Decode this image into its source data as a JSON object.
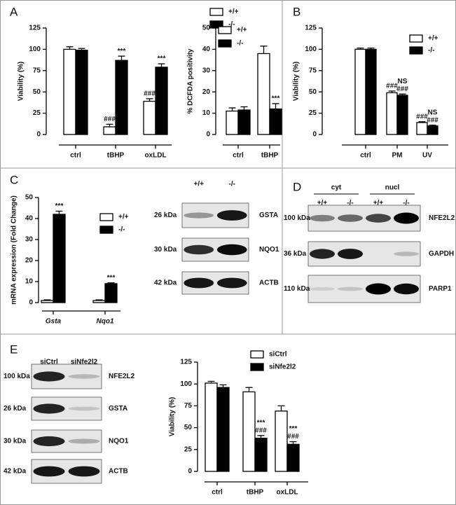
{
  "panel_letters": [
    "A",
    "B",
    "C",
    "D",
    "E"
  ],
  "chart_data": [
    {
      "type": "bar",
      "ylabel": "Viability (%)",
      "categories": [
        "ctrl",
        "tBHP",
        "oxLDL"
      ],
      "series": [
        {
          "name": "+/+",
          "color": "#ffffff",
          "values": [
            100,
            9,
            39
          ],
          "errors": [
            3,
            3,
            3
          ],
          "annotations": [
            null,
            [
              "###"
            ],
            [
              "###"
            ]
          ]
        },
        {
          "name": "-/-",
          "color": "#000000",
          "values": [
            99,
            87,
            79
          ],
          "errors": [
            2,
            5,
            4
          ],
          "annotations": [
            null,
            [
              "***"
            ],
            [
              "***"
            ]
          ]
        }
      ],
      "ylim": [
        0,
        125
      ],
      "yticks": [
        0,
        25,
        50,
        75,
        100,
        125
      ]
    },
    {
      "type": "bar",
      "ylabel": "% DCFDA positivity",
      "categories": [
        "ctrl",
        "tBHP"
      ],
      "series": [
        {
          "name": "+/+",
          "color": "#ffffff",
          "values": [
            11,
            38
          ],
          "errors": [
            1.5,
            3.5
          ]
        },
        {
          "name": "-/-",
          "color": "#000000",
          "values": [
            11.5,
            12
          ],
          "errors": [
            1.5,
            2.5
          ],
          "annotations": [
            null,
            [
              "***"
            ]
          ]
        }
      ],
      "ylim": [
        0,
        50
      ],
      "yticks": [
        0,
        10,
        20,
        30,
        40,
        50
      ]
    },
    {
      "type": "bar",
      "ylabel": "Viability (%)",
      "categories": [
        "ctrl",
        "PM",
        "UV"
      ],
      "series": [
        {
          "name": "+/+",
          "color": "#ffffff",
          "values": [
            100,
            49,
            14
          ],
          "errors": [
            1.5,
            2,
            1
          ],
          "annotations": [
            null,
            [
              "###"
            ],
            [
              "###"
            ]
          ]
        },
        {
          "name": "-/-",
          "color": "#000000",
          "values": [
            100,
            46,
            10
          ],
          "errors": [
            1.5,
            1.5,
            1
          ],
          "annotations": [
            null,
            [
              "NS",
              "###"
            ],
            [
              "NS",
              "###"
            ]
          ]
        }
      ],
      "ylim": [
        0,
        125
      ],
      "yticks": [
        0,
        25,
        50,
        75,
        100,
        125
      ]
    },
    {
      "type": "bar",
      "ylabel": "mRNA expression (Fold Change)",
      "categories": [
        "Gsta",
        "Nqo1"
      ],
      "category_style": "italic",
      "series": [
        {
          "name": "+/+",
          "color": "#ffffff",
          "values": [
            1,
            1
          ],
          "errors": [
            0.3,
            0.3
          ]
        },
        {
          "name": "-/-",
          "color": "#000000",
          "values": [
            42,
            9
          ],
          "errors": [
            1.5,
            0.4
          ],
          "annotations": [
            [
              "***"
            ],
            [
              "***"
            ]
          ]
        }
      ],
      "ylim": [
        0,
        50
      ],
      "yticks": [
        0,
        10,
        20,
        30,
        40,
        50
      ]
    },
    {
      "type": "bar",
      "ylabel": "Viability (%)",
      "categories": [
        "ctrl",
        "tBHP",
        "oxLDL"
      ],
      "series": [
        {
          "name": "siCtrl",
          "color": "#ffffff",
          "values": [
            101,
            91,
            69
          ],
          "errors": [
            2,
            5,
            6
          ]
        },
        {
          "name": "siNfe2l2",
          "color": "#000000",
          "values": [
            96,
            38,
            31
          ],
          "errors": [
            3,
            3,
            3
          ],
          "annotations": [
            null,
            [
              "***",
              "###"
            ],
            [
              "***",
              "###"
            ]
          ]
        }
      ],
      "ylim": [
        0,
        125
      ],
      "yticks": [
        0,
        25,
        50,
        75,
        100,
        125
      ]
    }
  ],
  "blots": [
    {
      "lanes": [
        "+/+",
        "-/-"
      ],
      "rows": [
        {
          "size": "26 kDa",
          "protein": "GSTA"
        },
        {
          "size": "30 kDa",
          "protein": "NQO1"
        },
        {
          "size": "42 kDa",
          "protein": "ACTB"
        }
      ]
    },
    {
      "groups": [
        "cyt",
        "nucl"
      ],
      "lanes": [
        "+/+",
        "-/-",
        "+/+",
        "-/-"
      ],
      "rows": [
        {
          "size": "100 kDa",
          "protein": "NFE2L2"
        },
        {
          "size": "36 kDa",
          "protein": "GAPDH"
        },
        {
          "size": "110 kDa",
          "protein": "PARP1"
        }
      ]
    },
    {
      "lanes": [
        "siCtrl",
        "siNfe2l2"
      ],
      "rows": [
        {
          "size": "100 kDa",
          "protein": "NFE2L2"
        },
        {
          "size": "26 kDa",
          "protein": "GSTA"
        },
        {
          "size": "30 kDa",
          "protein": "NQO1"
        },
        {
          "size": "42 kDa",
          "protein": "ACTB"
        }
      ]
    }
  ]
}
